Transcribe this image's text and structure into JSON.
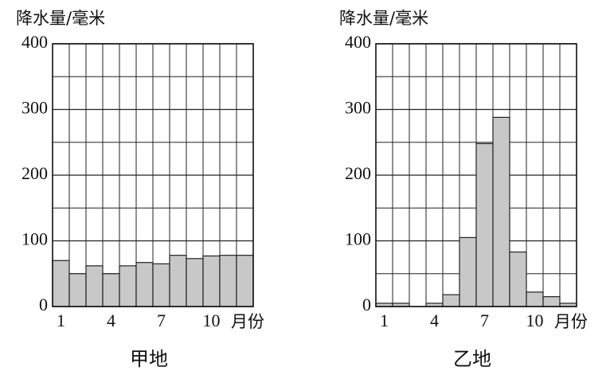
{
  "chart_data": [
    {
      "type": "bar",
      "y_label": "降水量/毫米",
      "x_label": "月份",
      "subtitle": "甲地",
      "categories": [
        "1",
        null,
        null,
        "4",
        null,
        null,
        "7",
        null,
        null,
        "10",
        null,
        null
      ],
      "values": [
        70,
        50,
        62,
        50,
        62,
        67,
        65,
        78,
        73,
        77,
        78,
        78
      ],
      "color": "#c8c8c8",
      "ylim": [
        0,
        400
      ],
      "yticks": [
        0,
        100,
        200,
        300,
        400
      ],
      "minor_yticks": [
        50,
        150,
        250,
        350
      ],
      "grid": true
    },
    {
      "type": "bar",
      "y_label": "降水量/毫米",
      "x_label": "月份",
      "subtitle": "乙地",
      "categories": [
        "1",
        null,
        null,
        "4",
        null,
        null,
        "7",
        null,
        null,
        "10",
        null,
        null
      ],
      "values": [
        5,
        5,
        0,
        5,
        18,
        105,
        248,
        288,
        83,
        22,
        15,
        5
      ],
      "color": "#c8c8c8",
      "ylim": [
        0,
        400
      ],
      "yticks": [
        0,
        100,
        200,
        300,
        400
      ],
      "minor_yticks": [
        50,
        150,
        250,
        350
      ],
      "grid": true
    }
  ]
}
